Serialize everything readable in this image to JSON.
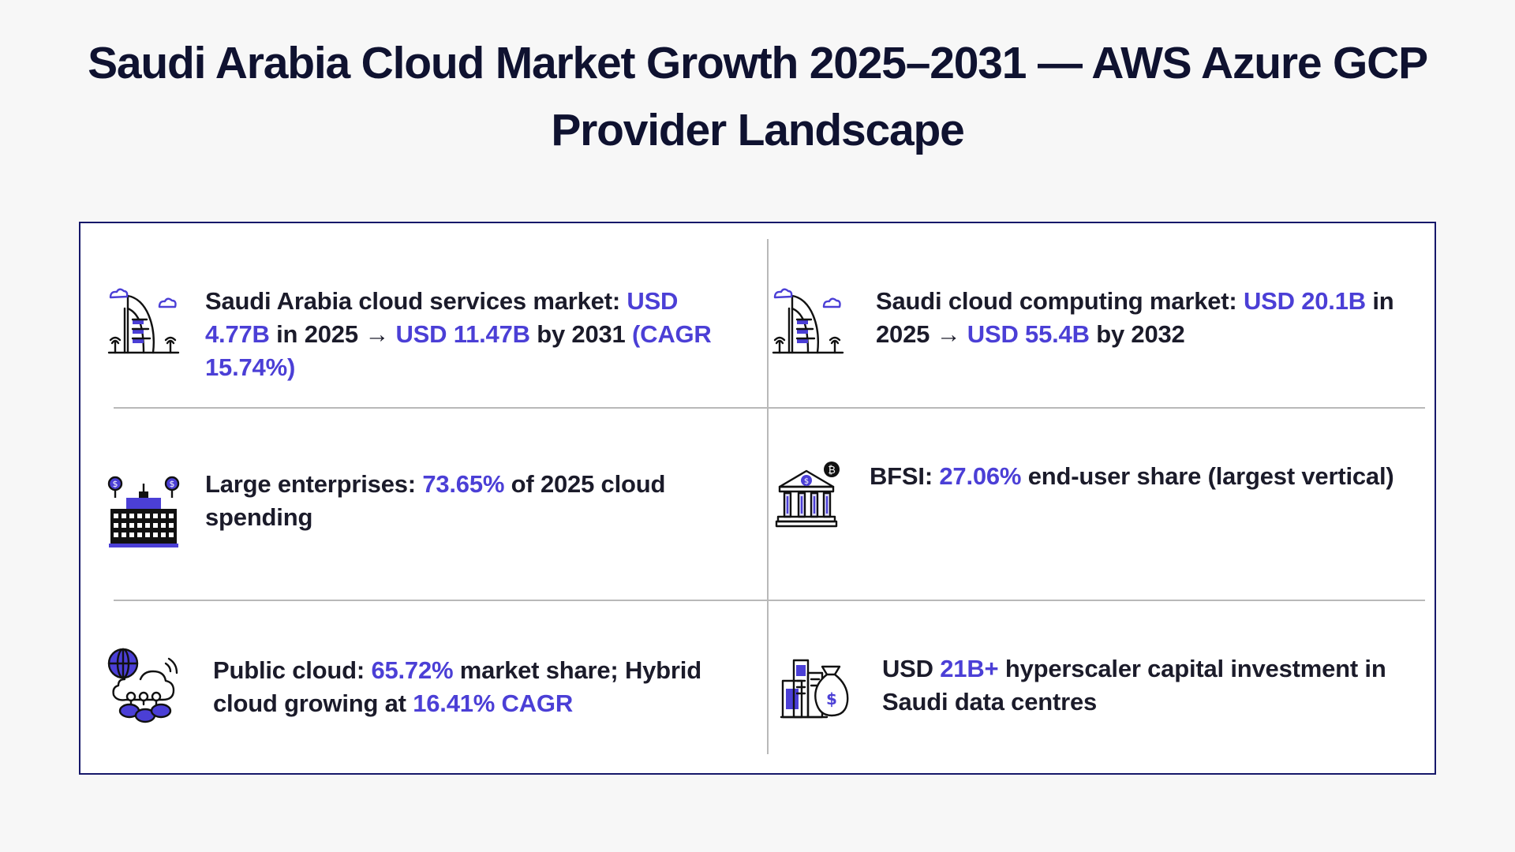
{
  "title": "Saudi Arabia Cloud Market Growth 2025–2031 — AWS Azure GCP Provider Landscape",
  "colors": {
    "accent": "#4b3fd6",
    "title": "#0f1230",
    "border": "#16186a",
    "divider": "#b9b9b9"
  },
  "cards": [
    {
      "icon": "saudi-landmark-icon",
      "parts": [
        {
          "t": "Saudi Arabia cloud services market: ",
          "hl": false
        },
        {
          "t": "USD 4.77B",
          "hl": true
        },
        {
          "t": " in 2025 → ",
          "hl": false
        },
        {
          "t": "USD 11.47B",
          "hl": true
        },
        {
          "t": " by 2031 ",
          "hl": false
        },
        {
          "t": "(CAGR 15.74%)",
          "hl": true
        }
      ]
    },
    {
      "icon": "saudi-landmark-icon",
      "parts": [
        {
          "t": "Saudi cloud computing market: ",
          "hl": false
        },
        {
          "t": "USD 20.1B",
          "hl": true
        },
        {
          "t": " in 2025 → ",
          "hl": false
        },
        {
          "t": "USD 55.4B",
          "hl": true
        },
        {
          "t": " by 2032",
          "hl": false
        }
      ]
    },
    {
      "icon": "enterprise-building-icon",
      "parts": [
        {
          "t": "Large enterprises: ",
          "hl": false
        },
        {
          "t": "73.65%",
          "hl": true
        },
        {
          "t": " of 2025 cloud spending",
          "hl": false
        }
      ]
    },
    {
      "icon": "bank-icon",
      "parts": [
        {
          "t": "BFSI: ",
          "hl": false
        },
        {
          "t": "27.06%",
          "hl": true
        },
        {
          "t": " end-user share (largest vertical)",
          "hl": false
        }
      ]
    },
    {
      "icon": "cloud-network-icon",
      "parts": [
        {
          "t": "Public cloud: ",
          "hl": false
        },
        {
          "t": "65.72%",
          "hl": true
        },
        {
          "t": " market share; Hybrid cloud growing at ",
          "hl": false
        },
        {
          "t": "16.41% CAGR",
          "hl": true
        }
      ]
    },
    {
      "icon": "investment-money-bag-icon",
      "parts": [
        {
          "t": "USD ",
          "hl": false
        },
        {
          "t": "21B+",
          "hl": true
        },
        {
          "t": " hyperscaler capital investment in Saudi data centres",
          "hl": false
        }
      ]
    }
  ]
}
